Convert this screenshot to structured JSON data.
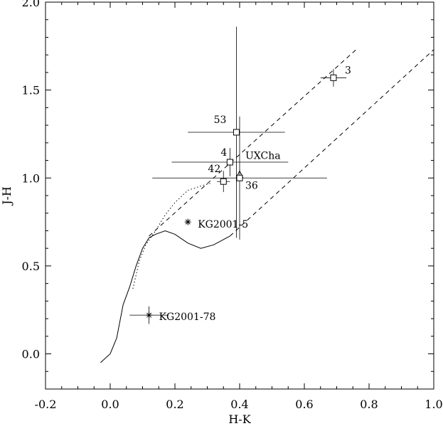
{
  "chart_data": {
    "type": "scatter",
    "xlabel": "H-K",
    "ylabel": "J-H",
    "xlim": [
      -0.2,
      1.0
    ],
    "ylim": [
      -0.2,
      2.0
    ],
    "x_ticks": [
      {
        "value": -0.2,
        "label": "-0.2"
      },
      {
        "value": 0.0,
        "label": "0.0"
      },
      {
        "value": 0.2,
        "label": "0.2"
      },
      {
        "value": 0.4,
        "label": "0.4"
      },
      {
        "value": 0.6,
        "label": "0.6"
      },
      {
        "value": 0.8,
        "label": "0.8"
      },
      {
        "value": 1.0,
        "label": "1.0"
      }
    ],
    "y_ticks": [
      {
        "value": 0.0,
        "label": "0.0"
      },
      {
        "value": 0.5,
        "label": "0.5"
      },
      {
        "value": 1.0,
        "label": "1.0"
      },
      {
        "value": 1.5,
        "label": "1.5"
      },
      {
        "value": 2.0,
        "label": "2.0"
      }
    ],
    "grid": false,
    "lines": [
      {
        "id": "main-sequence",
        "style": "solid",
        "points": [
          [
            -0.03,
            -0.05
          ],
          [
            0.0,
            0.0
          ],
          [
            0.02,
            0.09
          ],
          [
            0.04,
            0.28
          ],
          [
            0.06,
            0.38
          ],
          [
            0.08,
            0.5
          ],
          [
            0.1,
            0.6
          ],
          [
            0.12,
            0.66
          ],
          [
            0.14,
            0.68
          ],
          [
            0.17,
            0.7
          ],
          [
            0.2,
            0.68
          ],
          [
            0.24,
            0.63
          ],
          [
            0.28,
            0.6
          ],
          [
            0.32,
            0.62
          ],
          [
            0.37,
            0.67
          ]
        ]
      },
      {
        "id": "giant-branch",
        "style": "dotted",
        "points": [
          [
            0.07,
            0.37
          ],
          [
            0.09,
            0.53
          ],
          [
            0.11,
            0.62
          ],
          [
            0.14,
            0.7
          ],
          [
            0.17,
            0.79
          ],
          [
            0.2,
            0.86
          ],
          [
            0.24,
            0.93
          ],
          [
            0.29,
            0.96
          ],
          [
            0.31,
            0.97
          ]
        ]
      },
      {
        "id": "reddening-upper",
        "style": "dashed",
        "points": [
          [
            0.12,
            0.67
          ],
          [
            0.76,
            1.73
          ]
        ]
      },
      {
        "id": "reddening-lower",
        "style": "dashed",
        "points": [
          [
            0.37,
            0.67
          ],
          [
            1.0,
            1.73
          ]
        ]
      }
    ],
    "points": [
      {
        "label": "3",
        "x": 0.69,
        "y": 1.57,
        "marker": "square",
        "xerr": 0.04,
        "yerr": 0.05
      },
      {
        "label": "53",
        "x": 0.39,
        "y": 1.26,
        "marker": "square",
        "xerr": 0.15,
        "yerr": 0.6
      },
      {
        "label": "4",
        "x": 0.37,
        "y": 1.09,
        "marker": "square",
        "xerr": 0.18,
        "yerr": 0.08
      },
      {
        "label": "UXCha",
        "x": 0.4,
        "y": 1.02,
        "marker": "triangle",
        "xerr": 0.0,
        "yerr": 0.02
      },
      {
        "label": "42",
        "x": 0.35,
        "y": 0.98,
        "marker": "square",
        "xerr": 0.02,
        "yerr": 0.06
      },
      {
        "label": "36",
        "x": 0.4,
        "y": 1.0,
        "marker": "square",
        "xerr": 0.27,
        "yerr": 0.35
      },
      {
        "label": "KG2001-5",
        "x": 0.24,
        "y": 0.75,
        "marker": "asterisk",
        "xerr": 0.0,
        "yerr": 0.0
      },
      {
        "label": "KG2001-78",
        "x": 0.12,
        "y": 0.22,
        "marker": "asterisk",
        "xerr": 0.06,
        "yerr": 0.05
      }
    ]
  }
}
